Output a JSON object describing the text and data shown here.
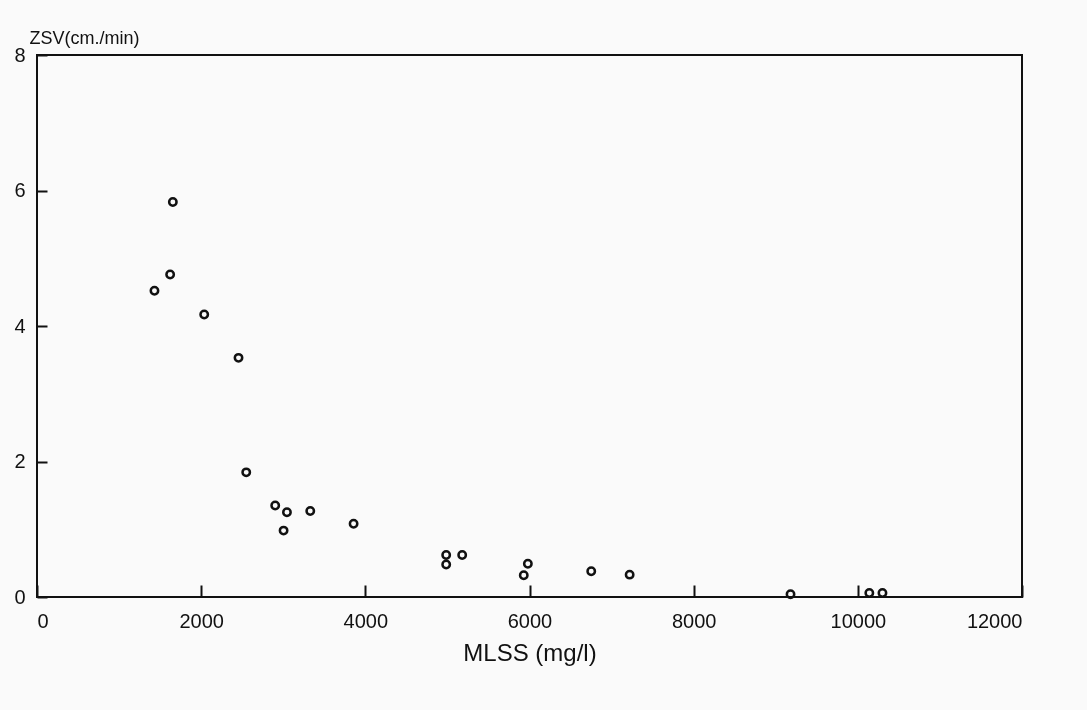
{
  "chart_data": {
    "type": "scatter",
    "xlabel": "MLSS (mg/l)",
    "ylabel": "ZSV(cm./min)",
    "x": [
      1655,
      1622,
      1431,
      2037,
      2455,
      2549,
      2902,
      3045,
      3329,
      3004,
      3857,
      4985,
      4985,
      5180,
      5980,
      5930,
      6752,
      7220,
      9180,
      10140,
      10300
    ],
    "series": [
      {
        "color": "#111111",
        "values": [
          5.83,
          4.76,
          4.52,
          4.17,
          3.53,
          1.84,
          1.35,
          1.25,
          1.27,
          0.98,
          1.08,
          0.62,
          0.48,
          0.62,
          0.49,
          0.32,
          0.38,
          0.33,
          0.04,
          0.06,
          0.06
        ]
      }
    ],
    "xlim": [
      0,
      12000
    ],
    "xticks": [
      0,
      2000,
      4000,
      6000,
      8000,
      10000,
      12000
    ],
    "ylim": [
      0,
      8
    ],
    "yticks": [
      0,
      2,
      4,
      6,
      8
    ],
    "grid": false,
    "marker": "circle"
  }
}
